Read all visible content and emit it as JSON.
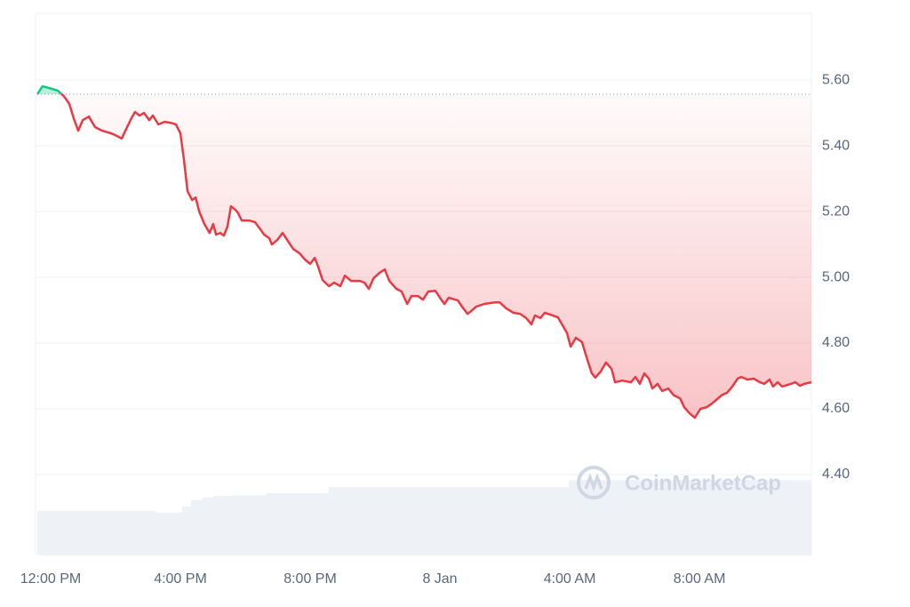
{
  "chart_data": {
    "type": "line",
    "x": [
      -0.41,
      -0.25,
      -0.05,
      0.22,
      0.41,
      0.58,
      0.71,
      0.85,
      0.99,
      1.18,
      1.37,
      1.59,
      1.86,
      2.0,
      2.19,
      2.33,
      2.49,
      2.6,
      2.74,
      2.88,
      3.04,
      3.15,
      3.32,
      3.51,
      3.7,
      3.86,
      4.0,
      4.11,
      4.22,
      4.36,
      4.47,
      4.58,
      4.74,
      4.9,
      5.01,
      5.1,
      5.23,
      5.34,
      5.45,
      5.56,
      5.7,
      5.78,
      5.89,
      6.11,
      6.3,
      6.44,
      6.58,
      6.74,
      6.82,
      6.99,
      7.15,
      7.29,
      7.48,
      7.67,
      7.84,
      8.0,
      8.14,
      8.25,
      8.38,
      8.58,
      8.74,
      8.93,
      9.07,
      9.26,
      9.53,
      9.67,
      9.81,
      9.95,
      10.14,
      10.3,
      10.44,
      10.66,
      10.82,
      10.99,
      11.12,
      11.32,
      11.48,
      11.64,
      11.86,
      12.0,
      12.14,
      12.27,
      12.55,
      12.68,
      12.85,
      12.96,
      13.12,
      13.37,
      13.7,
      13.84,
      14.05,
      14.27,
      14.47,
      14.66,
      14.82,
      14.93,
      15.1,
      15.23,
      15.42,
      15.64,
      15.81,
      15.92,
      16.03,
      16.19,
      16.38,
      16.52,
      16.68,
      16.79,
      16.96,
      17.12,
      17.29,
      17.4,
      17.62,
      17.89,
      18.03,
      18.16,
      18.3,
      18.44,
      18.55,
      18.71,
      18.85,
      19.04,
      19.21,
      19.4,
      19.53,
      19.7,
      19.86,
      20.03,
      20.22,
      20.36,
      20.52,
      20.68,
      20.85,
      20.99,
      21.18,
      21.29,
      21.48,
      21.67,
      21.86,
      22.0,
      22.16,
      22.27,
      22.41,
      22.55,
      22.82,
      22.96,
      23.1,
      23.23,
      23.45
    ],
    "values": [
      5.557,
      5.581,
      5.576,
      5.568,
      5.551,
      5.527,
      5.484,
      5.446,
      5.478,
      5.489,
      5.457,
      5.446,
      5.438,
      5.432,
      5.422,
      5.451,
      5.484,
      5.503,
      5.492,
      5.5,
      5.478,
      5.492,
      5.465,
      5.473,
      5.47,
      5.465,
      5.438,
      5.357,
      5.262,
      5.235,
      5.243,
      5.2,
      5.162,
      5.135,
      5.162,
      5.13,
      5.135,
      5.127,
      5.154,
      5.216,
      5.205,
      5.195,
      5.173,
      5.173,
      5.168,
      5.149,
      5.13,
      5.119,
      5.1,
      5.114,
      5.135,
      5.114,
      5.086,
      5.073,
      5.054,
      5.041,
      5.059,
      5.032,
      4.992,
      4.973,
      4.984,
      4.973,
      5.005,
      4.989,
      4.989,
      4.984,
      4.965,
      4.997,
      5.014,
      5.024,
      4.989,
      4.965,
      4.957,
      4.919,
      4.943,
      4.943,
      4.932,
      4.957,
      4.959,
      4.938,
      4.919,
      4.938,
      4.93,
      4.911,
      4.889,
      4.897,
      4.911,
      4.919,
      4.924,
      4.924,
      4.905,
      4.892,
      4.889,
      4.876,
      4.857,
      4.884,
      4.876,
      4.892,
      4.886,
      4.878,
      4.849,
      4.83,
      4.789,
      4.816,
      4.803,
      4.757,
      4.708,
      4.695,
      4.714,
      4.741,
      4.722,
      4.681,
      4.686,
      4.681,
      4.697,
      4.676,
      4.708,
      4.692,
      4.662,
      4.676,
      4.654,
      4.662,
      4.641,
      4.632,
      4.605,
      4.586,
      4.573,
      4.6,
      4.605,
      4.614,
      4.627,
      4.641,
      4.649,
      4.665,
      4.692,
      4.697,
      4.689,
      4.692,
      4.681,
      4.676,
      4.689,
      4.668,
      4.681,
      4.668,
      4.676,
      4.681,
      4.67,
      4.676,
      4.681
    ],
    "baseline": 5.557,
    "up_color": "#16c784",
    "down_color": "#ea3943",
    "volume": {
      "color": "#eef1f5",
      "ylim": [
        0,
        100
      ],
      "x": [
        -0.41,
        3.23,
        4.05,
        4.33,
        4.68,
        5.01,
        5.62,
        6.66,
        8.58,
        15.97,
        16.52
      ],
      "values": [
        8.2,
        7.9,
        9,
        10.2,
        10.7,
        11,
        11.1,
        11.5,
        12.6,
        13.9,
        13.9
      ]
    },
    "xlim": [
      -0.41,
      23.45
    ],
    "ylim": [
      4.154,
      5.803
    ],
    "xticks": [
      {
        "value": 0,
        "label": "12:00 PM"
      },
      {
        "value": 4,
        "label": "4:00 PM"
      },
      {
        "value": 8,
        "label": "8:00 PM"
      },
      {
        "value": 12,
        "label": "8 Jan"
      },
      {
        "value": 16,
        "label": "4:00 AM"
      },
      {
        "value": 20,
        "label": "8:00 AM"
      }
    ],
    "yticks": [
      {
        "value": 4.4,
        "label": "4.40"
      },
      {
        "value": 4.6,
        "label": "4.60"
      },
      {
        "value": 4.8,
        "label": "4.80"
      },
      {
        "value": 5.0,
        "label": "5.00"
      },
      {
        "value": 5.2,
        "label": "5.20"
      },
      {
        "value": 5.4,
        "label": "5.40"
      },
      {
        "value": 5.6,
        "label": "5.60"
      }
    ],
    "grid": true,
    "watermark": "CoinMarketCap"
  }
}
